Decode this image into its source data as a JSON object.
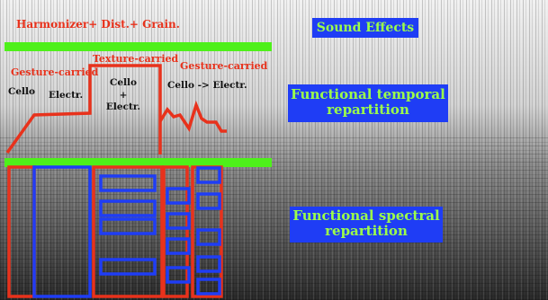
{
  "labels": {
    "top_title": "Harmonizer+ Dist.+ Grain.",
    "gesture_left": "Gesture-carried",
    "texture": "Texture-carried",
    "gesture_right": "Gesture-carried",
    "cello": "Cello",
    "electr": "Electr.",
    "cello_electr_line1": "Cello",
    "cello_electr_line2": "+",
    "cello_electr_line3": "Electr.",
    "cello_to_electr": "Cello -> Electr."
  },
  "boxes": {
    "sound_effects": "Sound Effects",
    "temporal_line1": "Functional temporal",
    "temporal_line2": "repartition",
    "spectral_line1": "Functional spectral",
    "spectral_line2": "repartition"
  },
  "colors": {
    "annotation_red": "#e8321c",
    "annotation_blue": "#1f3df5",
    "separator_green": "#4ef01a",
    "label_green": "#9cff4a",
    "background_gray": "#cfcfcf"
  }
}
